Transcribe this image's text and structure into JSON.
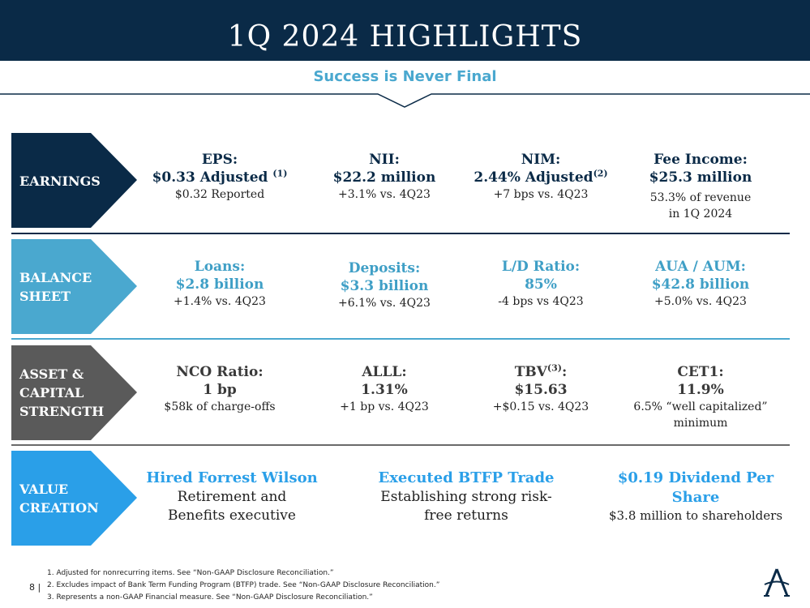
{
  "header": {
    "title": "1Q 2024 HIGHLIGHTS",
    "subtitle": "Success is Never Final"
  },
  "sections": {
    "earnings": {
      "label": "EARNINGS",
      "metrics": [
        {
          "title": "EPS:",
          "value": "$0.33 Adjusted",
          "sup": "(1)",
          "desc": "$0.32 Reported"
        },
        {
          "title": "NII:",
          "value": "$22.2 million",
          "desc": "+3.1% vs. 4Q23"
        },
        {
          "title": "NIM:",
          "value": "2.44% Adjusted",
          "sup": "(2)",
          "desc": "+7 bps vs. 4Q23"
        },
        {
          "title": "Fee Income:",
          "value": "$25.3 million",
          "desc_line1": "53.3% of revenue",
          "desc_line2": "in 1Q 2024"
        }
      ]
    },
    "balance_sheet": {
      "label_line1": "BALANCE",
      "label_line2": "SHEET",
      "metrics": [
        {
          "title": "Loans:",
          "value": "$2.8 billion",
          "desc": "+1.4% vs. 4Q23"
        },
        {
          "title": "Deposits:",
          "value": "$3.3 billion",
          "desc": "+6.1% vs. 4Q23"
        },
        {
          "title": "L/D Ratio:",
          "value": "85%",
          "desc": "-4 bps vs 4Q23"
        },
        {
          "title": "AUA / AUM:",
          "value": "$42.8 billion",
          "desc": "+5.0% vs. 4Q23"
        }
      ]
    },
    "asset_capital": {
      "label_line1": "ASSET &",
      "label_line2": "CAPITAL",
      "label_line3": "STRENGTH",
      "metrics": [
        {
          "title": "NCO Ratio:",
          "value": "1 bp",
          "desc": "$58k of charge-offs"
        },
        {
          "title": "ALLL:",
          "value": "1.31%",
          "desc": "+1 bp vs. 4Q23"
        },
        {
          "title": "TBV",
          "sup": "(3)",
          "title_suffix": ":",
          "value": "$15.63",
          "desc": "+$0.15 vs. 4Q23"
        },
        {
          "title": "CET1:",
          "value": "11.9%",
          "desc_line1": "6.5% “well capitalized”",
          "desc_line2": "minimum"
        }
      ]
    },
    "value_creation": {
      "label_line1": "VALUE",
      "label_line2": "CREATION",
      "items": [
        {
          "title": "Hired Forrest Wilson",
          "desc_line1": "Retirement and",
          "desc_line2": "Benefits executive"
        },
        {
          "title": "Executed BTFP Trade",
          "desc_line1": "Establishing strong risk-",
          "desc_line2": "free returns"
        },
        {
          "title": "$0.19 Dividend Per Share",
          "desc_line1": "$3.8 million to shareholders"
        }
      ]
    }
  },
  "footer": {
    "page_number": "8 |",
    "footnotes": [
      "1. Adjusted for nonrecurring items. See “Non-GAAP Disclosure Reconciliation.”",
      "2. Excludes impact of Bank Term Funding Program (BTFP) trade. See “Non-GAAP Disclosure Reconciliation.”",
      "3. Represents a non-GAAP Financial measure. See “Non-GAAP Disclosure Reconciliation.”"
    ]
  },
  "colors": {
    "navy": "#0a2a47",
    "teal": "#4aa8cf",
    "gray": "#5a5a5a",
    "blue": "#2a9fe8"
  },
  "logo_icon": "a-monogram-icon"
}
